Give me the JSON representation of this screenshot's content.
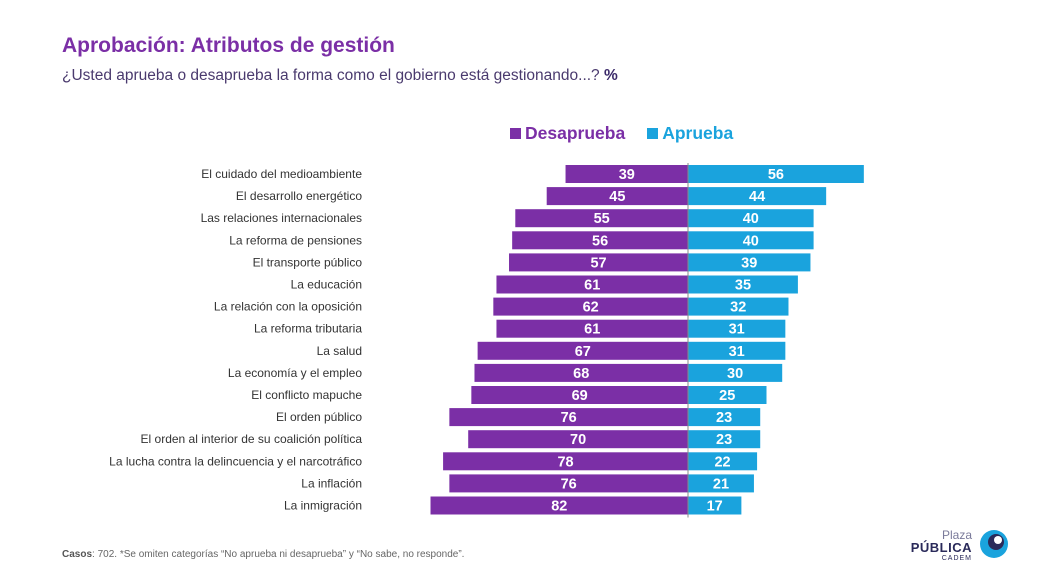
{
  "title": "Aprobación: Atributos de gestión",
  "subtitle": "¿Usted aprueba o desaprueba la forma como el gobierno está gestionando...?",
  "subtitle_unit": "%",
  "footnote_label": "Casos",
  "footnote_text": ": 702. *Se omiten categorías “No aprueba ni desaprueba” y “No sabe, no responde”.",
  "logo": {
    "line1": "Plaza",
    "line2": "PÚBLICA",
    "line3": "CADEM"
  },
  "colors": {
    "desaprueba": "#7b2fa6",
    "aprueba": "#1aa3dd"
  },
  "chart_data": {
    "type": "bar",
    "orientation": "horizontal-diverging",
    "categories": [
      "El cuidado del medioambiente",
      "El desarrollo energético",
      "Las relaciones internacionales",
      "La reforma de pensiones",
      "El transporte público",
      "La educación",
      "La relación con la oposición",
      "La reforma tributaria",
      "La salud",
      "La economía y el empleo",
      "El conflicto mapuche",
      "El orden público",
      "El orden al interior de su coalición política",
      "La lucha contra la delincuencia y el narcotráfico",
      "La inflación",
      "La inmigración"
    ],
    "series": [
      {
        "name": "Desaprueba",
        "values": [
          39,
          45,
          55,
          56,
          57,
          61,
          62,
          61,
          67,
          68,
          69,
          76,
          70,
          78,
          76,
          82
        ]
      },
      {
        "name": "Aprueba",
        "values": [
          56,
          44,
          40,
          40,
          39,
          35,
          32,
          31,
          31,
          30,
          25,
          23,
          23,
          22,
          21,
          17
        ]
      }
    ],
    "legend_position": "top-center",
    "grid": false
  }
}
